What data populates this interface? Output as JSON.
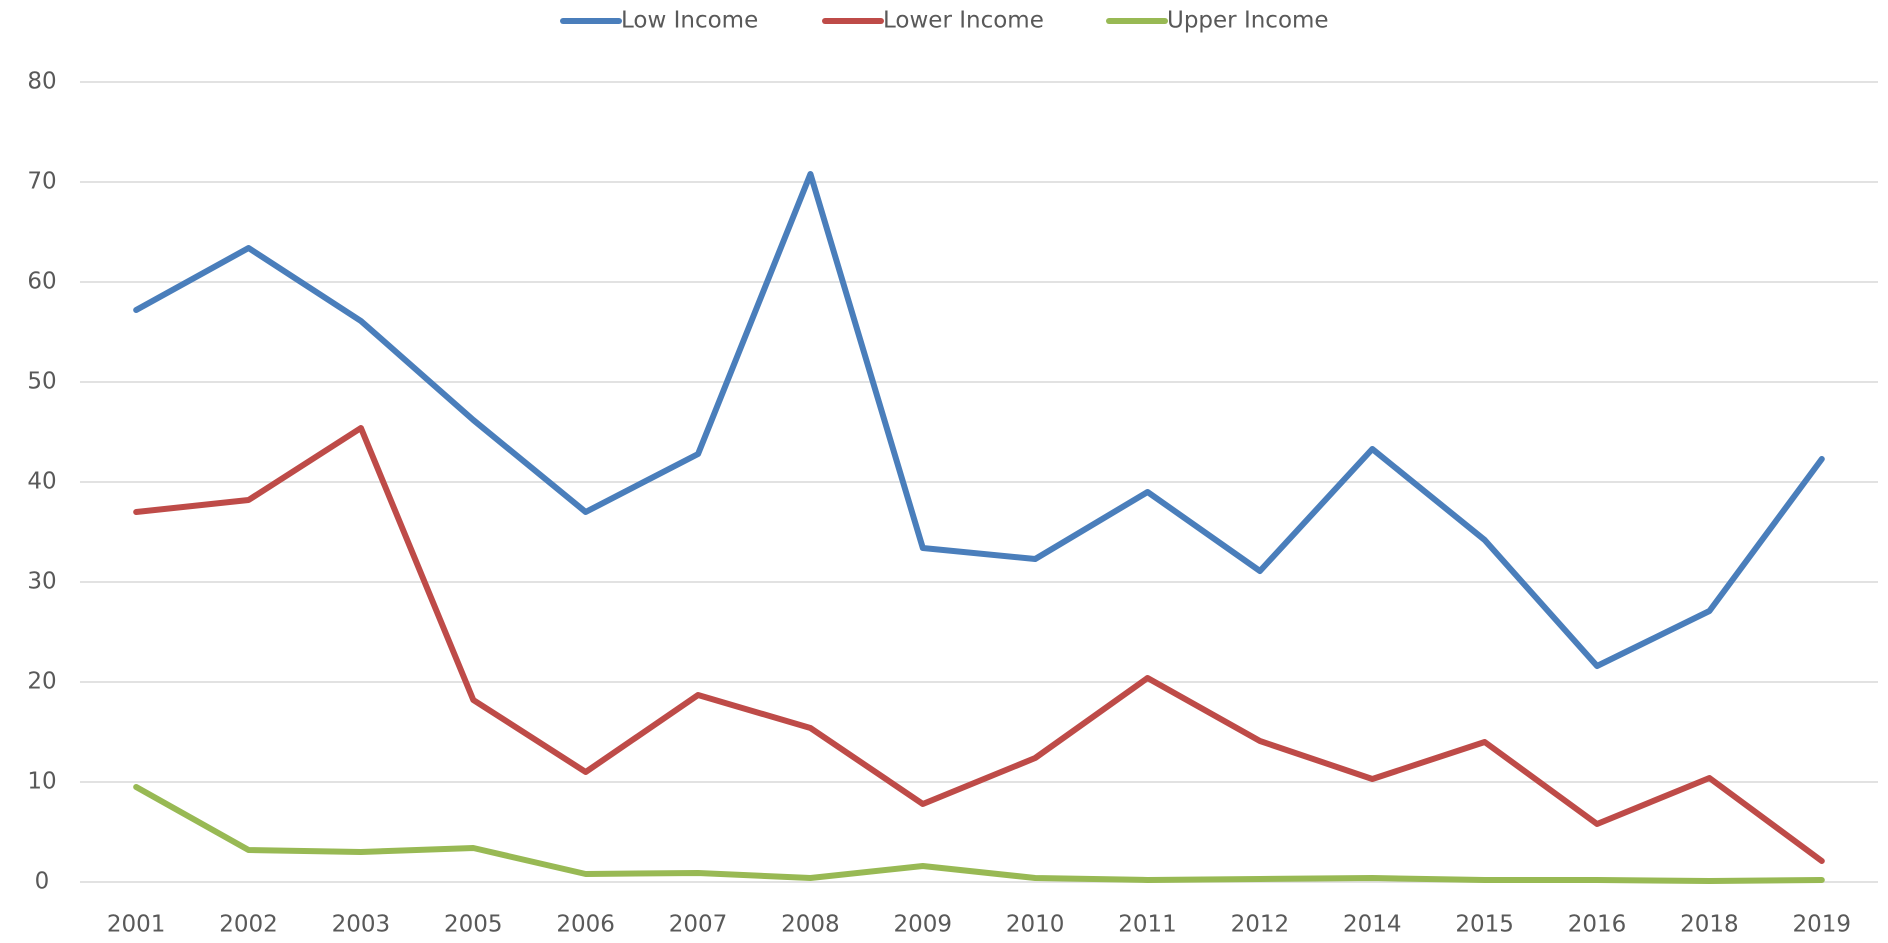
{
  "chart_data": {
    "type": "line",
    "categories": [
      "2001",
      "2002",
      "2003",
      "2005",
      "2006",
      "2007",
      "2008",
      "2009",
      "2010",
      "2011",
      "2012",
      "2014",
      "2015",
      "2016",
      "2018",
      "2019"
    ],
    "series": [
      {
        "name": "Low Income",
        "color": "#4a7ebb",
        "values": [
          57.2,
          63.4,
          56.1,
          46.2,
          37.0,
          42.8,
          70.8,
          33.4,
          32.3,
          39.0,
          31.1,
          43.3,
          34.2,
          21.6,
          27.1,
          42.3
        ]
      },
      {
        "name": "Lower Income",
        "color": "#be4b48",
        "values": [
          37.0,
          38.2,
          45.4,
          18.2,
          11.0,
          18.7,
          15.4,
          7.8,
          12.4,
          20.4,
          14.1,
          10.3,
          14.0,
          5.8,
          10.4,
          2.1
        ]
      },
      {
        "name": "Upper Income",
        "color": "#98b954",
        "values": [
          9.5,
          3.2,
          3.0,
          3.4,
          0.8,
          0.9,
          0.4,
          1.6,
          0.4,
          0.2,
          0.3,
          0.4,
          0.2,
          0.2,
          0.1,
          0.2
        ]
      }
    ],
    "ylim": [
      0,
      80
    ],
    "yticks": [
      0,
      10,
      20,
      30,
      40,
      50,
      60,
      70,
      80
    ],
    "grid": true,
    "legend": "top"
  }
}
